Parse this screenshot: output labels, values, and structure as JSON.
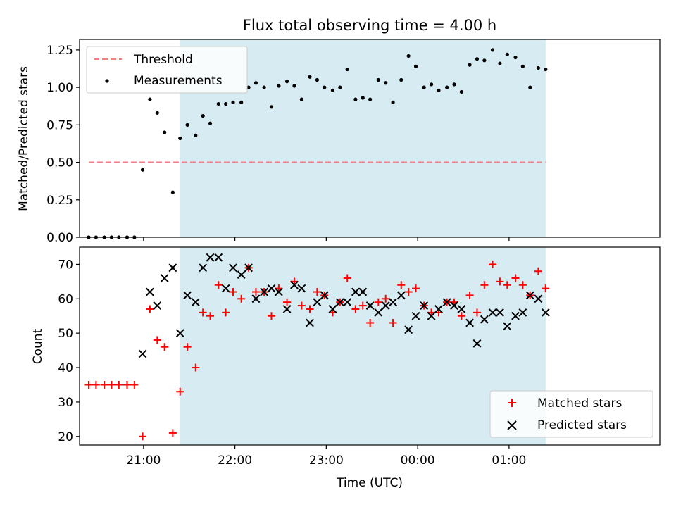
{
  "chart_data": {
    "title": "Flux total observing time = 4.00 h",
    "xlabel": "Time (UTC)",
    "x_unit": "hours (UTC)",
    "x_range": [
      20.3,
      26.65
    ],
    "x_ticks": [
      {
        "value": 21,
        "label": "21:00"
      },
      {
        "value": 22,
        "label": "22:00"
      },
      {
        "value": 23,
        "label": "23:00"
      },
      {
        "value": 24,
        "label": "00:00"
      },
      {
        "value": 25,
        "label": "01:00"
      }
    ],
    "observing_window": {
      "start": 21.4,
      "end": 25.4,
      "color": "#add8e6"
    },
    "top": {
      "type": "scatter",
      "ylabel": "Matched/Predicted stars",
      "ylim": [
        0,
        1.32
      ],
      "y_ticks": [
        "0.00",
        "0.25",
        "0.50",
        "0.75",
        "1.00",
        "1.25"
      ],
      "threshold": {
        "name": "Threshold",
        "value": 0.5,
        "x_range": [
          20.4,
          25.4
        ],
        "color": "#f08080"
      },
      "series": {
        "name": "Measurements",
        "color": "#000000",
        "x": [
          20.4,
          20.48,
          20.57,
          20.65,
          20.73,
          20.82,
          20.9,
          20.99,
          21.07,
          21.15,
          21.23,
          21.32,
          21.4,
          21.48,
          21.57,
          21.65,
          21.73,
          21.82,
          21.9,
          21.98,
          22.07,
          22.15,
          22.23,
          22.32,
          22.4,
          22.48,
          22.57,
          22.65,
          22.73,
          22.82,
          22.9,
          22.98,
          23.07,
          23.15,
          23.23,
          23.32,
          23.4,
          23.48,
          23.57,
          23.65,
          23.73,
          23.82,
          23.9,
          23.98,
          24.07,
          24.15,
          24.23,
          24.32,
          24.4,
          24.48,
          24.57,
          24.65,
          24.73,
          24.82,
          24.9,
          24.98,
          25.07,
          25.15,
          25.23,
          25.32,
          25.4
        ],
        "y": [
          0,
          0,
          0,
          0,
          0,
          0,
          0,
          0.45,
          0.92,
          0.83,
          0.7,
          0.3,
          0.66,
          0.75,
          0.68,
          0.81,
          0.76,
          0.89,
          0.89,
          0.9,
          0.9,
          1.0,
          1.03,
          1.0,
          0.87,
          1.01,
          1.04,
          1.01,
          0.92,
          1.07,
          1.05,
          1.0,
          0.98,
          1.0,
          1.12,
          0.92,
          0.93,
          0.92,
          1.05,
          1.03,
          0.9,
          1.05,
          1.21,
          1.14,
          1.0,
          1.02,
          0.98,
          1.0,
          1.02,
          0.97,
          1.15,
          1.19,
          1.18,
          1.25,
          1.16,
          1.22,
          1.2,
          1.14,
          1.0,
          1.13,
          1.12
        ]
      }
    },
    "bottom": {
      "type": "scatter",
      "ylabel": "Count",
      "ylim": [
        17.5,
        75
      ],
      "y_ticks": [
        20,
        30,
        40,
        50,
        60,
        70
      ],
      "series": [
        {
          "name": "Matched stars",
          "marker": "+",
          "color": "#ff0000",
          "x": [
            20.4,
            20.48,
            20.57,
            20.65,
            20.73,
            20.82,
            20.9,
            20.99,
            21.07,
            21.15,
            21.23,
            21.32,
            21.4,
            21.48,
            21.57,
            21.65,
            21.73,
            21.82,
            21.9,
            21.98,
            22.07,
            22.15,
            22.23,
            22.32,
            22.4,
            22.48,
            22.57,
            22.65,
            22.73,
            22.82,
            22.9,
            22.98,
            23.07,
            23.15,
            23.23,
            23.32,
            23.4,
            23.48,
            23.57,
            23.65,
            23.73,
            23.82,
            23.9,
            23.98,
            24.07,
            24.15,
            24.23,
            24.32,
            24.4,
            24.48,
            24.57,
            24.65,
            24.73,
            24.82,
            24.9,
            24.98,
            25.07,
            25.15,
            25.23,
            25.32,
            25.4
          ],
          "y": [
            35,
            35,
            35,
            35,
            35,
            35,
            35,
            20,
            57,
            48,
            46,
            21,
            33,
            46,
            40,
            56,
            55,
            64,
            56,
            62,
            60,
            69,
            62,
            62,
            55,
            63,
            59,
            65,
            58,
            57,
            62,
            61,
            56,
            59,
            66,
            57,
            58,
            53,
            59,
            60,
            53,
            64,
            62,
            63,
            58,
            56,
            56,
            59,
            59,
            55,
            61,
            56,
            64,
            70,
            65,
            64,
            66,
            64,
            61,
            68,
            63
          ]
        },
        {
          "name": "Predicted stars",
          "marker": "x",
          "color": "#000000",
          "x": [
            20.99,
            21.07,
            21.15,
            21.23,
            21.32,
            21.4,
            21.48,
            21.57,
            21.65,
            21.73,
            21.82,
            21.9,
            21.98,
            22.07,
            22.15,
            22.23,
            22.32,
            22.4,
            22.48,
            22.57,
            22.65,
            22.73,
            22.82,
            22.9,
            22.98,
            23.07,
            23.15,
            23.23,
            23.32,
            23.4,
            23.48,
            23.57,
            23.65,
            23.73,
            23.82,
            23.9,
            23.98,
            24.07,
            24.15,
            24.23,
            24.32,
            24.4,
            24.48,
            24.57,
            24.65,
            24.73,
            24.82,
            24.9,
            24.98,
            25.07,
            25.15,
            25.23,
            25.32,
            25.4
          ],
          "y": [
            44,
            62,
            58,
            66,
            69,
            50,
            61,
            59,
            69,
            72,
            72,
            63,
            69,
            67,
            69,
            60,
            62,
            63,
            62,
            57,
            64,
            63,
            53,
            59,
            61,
            57,
            59,
            59,
            62,
            62,
            58,
            56,
            58,
            59,
            61,
            51,
            55,
            58,
            55,
            57,
            59,
            58,
            57,
            53,
            47,
            54,
            56,
            56,
            52,
            55,
            56,
            61,
            60,
            56
          ]
        }
      ]
    },
    "legend_top": {
      "position": "upper-left",
      "entries": [
        "Threshold",
        "Measurements"
      ]
    },
    "legend_bottom": {
      "position": "lower-right",
      "entries": [
        "Matched stars",
        "Predicted stars"
      ]
    }
  }
}
